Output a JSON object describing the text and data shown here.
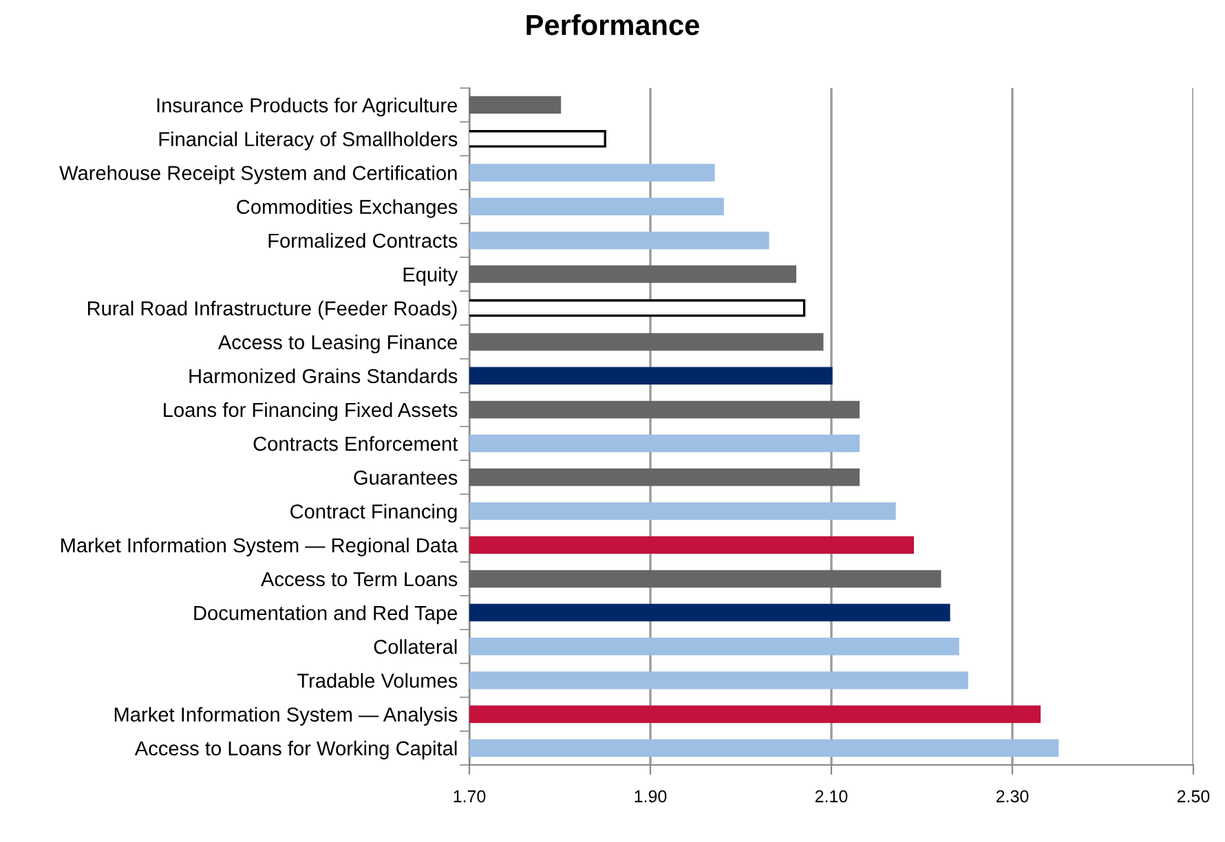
{
  "chart_data": {
    "type": "bar",
    "orientation": "horizontal",
    "title": "Performance",
    "categories": [
      "Insurance Products for Agriculture",
      "Financial Literacy of Smallholders",
      "Warehouse Receipt System and Certification",
      "Commodities Exchanges",
      "Formalized Contracts",
      "Equity",
      "Rural Road Infrastructure (Feeder Roads)",
      "Access to Leasing Finance",
      "Harmonized Grains Standards",
      "Loans for Financing Fixed Assets",
      "Contracts Enforcement",
      "Guarantees",
      "Contract Financing",
      "Market Information System — Regional Data",
      "Access to Term Loans",
      "Documentation and Red Tape",
      "Collateral",
      "Tradable Volumes",
      "Market Information System — Analysis",
      "Access to Loans for Working Capital"
    ],
    "values": [
      1.8,
      1.85,
      1.97,
      1.98,
      2.03,
      2.06,
      2.07,
      2.09,
      2.1,
      2.13,
      2.13,
      2.13,
      2.17,
      2.19,
      2.22,
      2.23,
      2.24,
      2.25,
      2.33,
      2.35
    ],
    "colors": [
      "#666666",
      "#ffffff",
      "#9dbfe4",
      "#9dbfe4",
      "#9dbfe4",
      "#666666",
      "#ffffff",
      "#666666",
      "#002868",
      "#666666",
      "#9dbfe4",
      "#666666",
      "#9dbfe4",
      "#c4123c",
      "#666666",
      "#002868",
      "#9dbfe4",
      "#9dbfe4",
      "#c4123c",
      "#9dbfe4"
    ],
    "xlim": [
      1.7,
      2.5
    ],
    "xticks": [
      {
        "value": 1.7,
        "label": "1.70"
      },
      {
        "value": 1.9,
        "label": "1.90"
      },
      {
        "value": 2.1,
        "label": "2.10"
      },
      {
        "value": 2.3,
        "label": "2.30"
      },
      {
        "value": 2.5,
        "label": "2.50"
      }
    ],
    "grid": "x"
  }
}
